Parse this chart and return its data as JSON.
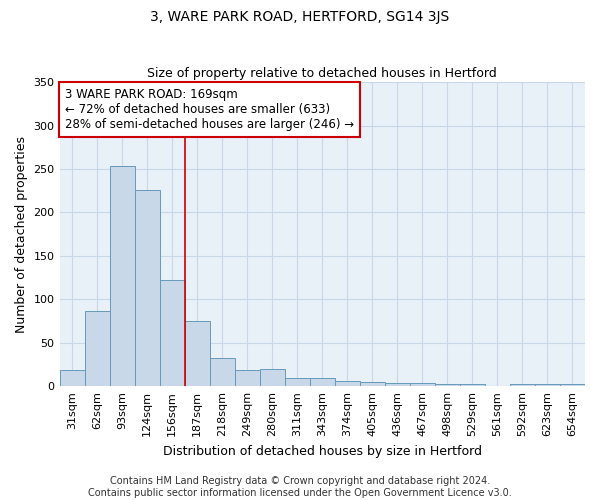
{
  "title": "3, WARE PARK ROAD, HERTFORD, SG14 3JS",
  "subtitle": "Size of property relative to detached houses in Hertford",
  "xlabel": "Distribution of detached houses by size in Hertford",
  "ylabel": "Number of detached properties",
  "categories": [
    "31sqm",
    "62sqm",
    "93sqm",
    "124sqm",
    "156sqm",
    "187sqm",
    "218sqm",
    "249sqm",
    "280sqm",
    "311sqm",
    "343sqm",
    "374sqm",
    "405sqm",
    "436sqm",
    "467sqm",
    "498sqm",
    "529sqm",
    "561sqm",
    "592sqm",
    "623sqm",
    "654sqm"
  ],
  "values": [
    19,
    87,
    253,
    226,
    122,
    75,
    33,
    19,
    20,
    9,
    9,
    6,
    5,
    4,
    4,
    3,
    3,
    0,
    3,
    3,
    3
  ],
  "bar_color": "#c8d8e8",
  "bar_edge_color": "#6699bb",
  "bar_linewidth": 0.7,
  "vline_x": 4.5,
  "vline_color": "#cc0000",
  "vline_linewidth": 1.2,
  "annotation_text": "3 WARE PARK ROAD: 169sqm\n← 72% of detached houses are smaller (633)\n28% of semi-detached houses are larger (246) →",
  "annotation_box_color": "#ffffff",
  "annotation_box_edge": "#cc0000",
  "ylim": [
    0,
    350
  ],
  "yticks": [
    0,
    50,
    100,
    150,
    200,
    250,
    300,
    350
  ],
  "grid_color": "#c8d8e8",
  "bg_color": "#e8f0f8",
  "footer_text": "Contains HM Land Registry data © Crown copyright and database right 2024.\nContains public sector information licensed under the Open Government Licence v3.0.",
  "title_fontsize": 10,
  "subtitle_fontsize": 9,
  "axis_label_fontsize": 9,
  "tick_fontsize": 8,
  "footer_fontsize": 7,
  "annotation_fontsize": 8.5
}
